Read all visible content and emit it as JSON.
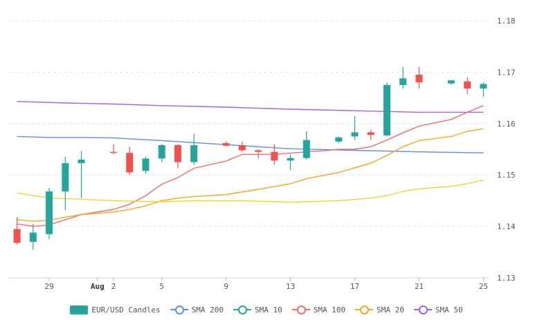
{
  "chart_data": {
    "type": "candlestick",
    "y_axis": {
      "position": "right",
      "range": [
        1.13,
        1.18
      ],
      "ticks": [
        "1.13",
        "1.14",
        "1.15",
        "1.16",
        "1.17",
        "1.18"
      ]
    },
    "x_axis": {
      "ticks": [
        {
          "day": 29,
          "label": "29"
        },
        {
          "day": 32,
          "label": "Aug",
          "bold": true
        },
        {
          "day": 33,
          "label": "2"
        },
        {
          "day": 36,
          "label": "5"
        },
        {
          "day": 40,
          "label": "9"
        },
        {
          "day": 44,
          "label": "13"
        },
        {
          "day": 48,
          "label": "17"
        },
        {
          "day": 52,
          "label": "21"
        },
        {
          "day": 56,
          "label": "25"
        }
      ]
    },
    "grid": true,
    "legend_placement": "bottom",
    "colors": {
      "up": "#26a69a",
      "down": "#ef5350",
      "sma200": "#5b8def",
      "sma10": "#ef6b6b",
      "sma100": "#f5a623",
      "sma20": "#f5d033",
      "sma50": "#a461e6"
    },
    "candles": [
      {
        "day": 27,
        "open": 1.1395,
        "high": 1.1418,
        "low": 1.1365,
        "close": 1.1368
      },
      {
        "day": 28,
        "open": 1.137,
        "high": 1.1405,
        "low": 1.1355,
        "close": 1.1388
      },
      {
        "day": 29,
        "open": 1.1385,
        "high": 1.1475,
        "low": 1.1375,
        "close": 1.1468
      },
      {
        "day": 30,
        "open": 1.1468,
        "high": 1.1535,
        "low": 1.1432,
        "close": 1.1523
      },
      {
        "day": 31,
        "open": 1.1523,
        "high": 1.1547,
        "low": 1.1455,
        "close": 1.153
      },
      {
        "day": 33,
        "open": 1.1545,
        "high": 1.156,
        "low": 1.154,
        "close": 1.1543
      },
      {
        "day": 34,
        "open": 1.1543,
        "high": 1.1555,
        "low": 1.15,
        "close": 1.1505
      },
      {
        "day": 35,
        "open": 1.1508,
        "high": 1.1535,
        "low": 1.1502,
        "close": 1.1532
      },
      {
        "day": 36,
        "open": 1.1532,
        "high": 1.156,
        "low": 1.1525,
        "close": 1.1558
      },
      {
        "day": 37,
        "open": 1.1558,
        "high": 1.156,
        "low": 1.1513,
        "close": 1.1525
      },
      {
        "day": 38,
        "open": 1.1525,
        "high": 1.158,
        "low": 1.152,
        "close": 1.1558
      },
      {
        "day": 40,
        "open": 1.1562,
        "high": 1.1565,
        "low": 1.1555,
        "close": 1.1557
      },
      {
        "day": 41,
        "open": 1.1558,
        "high": 1.1565,
        "low": 1.1545,
        "close": 1.1548
      },
      {
        "day": 42,
        "open": 1.1548,
        "high": 1.155,
        "low": 1.1532,
        "close": 1.1545
      },
      {
        "day": 43,
        "open": 1.1545,
        "high": 1.156,
        "low": 1.152,
        "close": 1.1528
      },
      {
        "day": 44,
        "open": 1.1528,
        "high": 1.154,
        "low": 1.151,
        "close": 1.1533
      },
      {
        "day": 45,
        "open": 1.1533,
        "high": 1.1585,
        "low": 1.153,
        "close": 1.1568
      },
      {
        "day": 47,
        "open": 1.1565,
        "high": 1.1575,
        "low": 1.1562,
        "close": 1.1573
      },
      {
        "day": 48,
        "open": 1.1575,
        "high": 1.1615,
        "low": 1.1568,
        "close": 1.1583
      },
      {
        "day": 49,
        "open": 1.1583,
        "high": 1.1588,
        "low": 1.1568,
        "close": 1.1578
      },
      {
        "day": 50,
        "open": 1.1577,
        "high": 1.168,
        "low": 1.1575,
        "close": 1.1675
      },
      {
        "day": 51,
        "open": 1.1675,
        "high": 1.171,
        "low": 1.1668,
        "close": 1.1688
      },
      {
        "day": 52,
        "open": 1.1695,
        "high": 1.171,
        "low": 1.1668,
        "close": 1.168
      },
      {
        "day": 54,
        "open": 1.1678,
        "high": 1.1685,
        "low": 1.1675,
        "close": 1.1684
      },
      {
        "day": 55,
        "open": 1.1682,
        "high": 1.169,
        "low": 1.1657,
        "close": 1.1668
      },
      {
        "day": 56,
        "open": 1.1668,
        "high": 1.168,
        "low": 1.1652,
        "close": 1.1677
      }
    ],
    "series": [
      {
        "name": "EUR/USD Candles",
        "legend_type": "box",
        "color": "#26a69a"
      },
      {
        "name": "SMA 200",
        "color": "#5b8def",
        "legend_type": "line",
        "points": [
          [
            27,
            1.1575
          ],
          [
            29,
            1.1573
          ],
          [
            31,
            1.1573
          ],
          [
            33,
            1.1572
          ],
          [
            36,
            1.1567
          ],
          [
            40,
            1.1559
          ],
          [
            44,
            1.1551
          ],
          [
            48,
            1.1548
          ],
          [
            52,
            1.1545
          ],
          [
            56,
            1.1543
          ]
        ]
      },
      {
        "name": "SMA 10",
        "color": "#26a69a",
        "legend_type": "line",
        "points": []
      },
      {
        "name": "SMA 100",
        "color": "#ef6b6b",
        "legend_type": "line",
        "points": [
          [
            27,
            1.1405
          ],
          [
            28,
            1.14
          ],
          [
            29,
            1.1403
          ],
          [
            30,
            1.1413
          ],
          [
            31,
            1.1423
          ],
          [
            33,
            1.1433
          ],
          [
            34,
            1.1443
          ],
          [
            35,
            1.146
          ],
          [
            36,
            1.1482
          ],
          [
            37,
            1.1495
          ],
          [
            38,
            1.1513
          ],
          [
            40,
            1.1527
          ],
          [
            41,
            1.154
          ],
          [
            43,
            1.154
          ],
          [
            45,
            1.1545
          ],
          [
            46,
            1.1547
          ],
          [
            47,
            1.155
          ],
          [
            48,
            1.155
          ],
          [
            49,
            1.1555
          ],
          [
            50,
            1.1568
          ],
          [
            51,
            1.1582
          ],
          [
            52,
            1.1595
          ],
          [
            54,
            1.1608
          ],
          [
            55,
            1.1622
          ],
          [
            56,
            1.1635
          ]
        ]
      },
      {
        "name": "SMA 20",
        "color": "#f5a623",
        "legend_type": "line",
        "points": [
          [
            27,
            1.1413
          ],
          [
            28,
            1.141
          ],
          [
            29,
            1.1412
          ],
          [
            30,
            1.1418
          ],
          [
            31,
            1.1423
          ],
          [
            33,
            1.1428
          ],
          [
            34,
            1.1433
          ],
          [
            35,
            1.144
          ],
          [
            36,
            1.145
          ],
          [
            37,
            1.1455
          ],
          [
            38,
            1.1458
          ],
          [
            40,
            1.1462
          ],
          [
            42,
            1.1472
          ],
          [
            44,
            1.1483
          ],
          [
            45,
            1.1493
          ],
          [
            47,
            1.1505
          ],
          [
            49,
            1.1523
          ],
          [
            50,
            1.1538
          ],
          [
            51,
            1.1555
          ],
          [
            52,
            1.1567
          ],
          [
            54,
            1.1575
          ],
          [
            55,
            1.1585
          ],
          [
            56,
            1.159
          ]
        ]
      },
      {
        "name": "SMA 50",
        "color": "#a461e6",
        "legend_type": "line",
        "points": [
          [
            27,
            1.1643
          ],
          [
            30,
            1.164
          ],
          [
            33,
            1.1638
          ],
          [
            36,
            1.1635
          ],
          [
            40,
            1.1632
          ],
          [
            44,
            1.1628
          ],
          [
            48,
            1.1625
          ],
          [
            52,
            1.1622
          ],
          [
            56,
            1.1622
          ]
        ]
      },
      {
        "name": "",
        "color": "#f5d033",
        "legend": false,
        "points": [
          [
            27,
            1.1465
          ],
          [
            29,
            1.1455
          ],
          [
            31,
            1.1453
          ],
          [
            33,
            1.145
          ],
          [
            36,
            1.1448
          ],
          [
            38,
            1.145
          ],
          [
            41,
            1.145
          ],
          [
            44,
            1.1447
          ],
          [
            47,
            1.145
          ],
          [
            49,
            1.1455
          ],
          [
            50,
            1.146
          ],
          [
            51,
            1.1468
          ],
          [
            52,
            1.1473
          ],
          [
            54,
            1.1478
          ],
          [
            55,
            1.1483
          ],
          [
            56,
            1.149
          ]
        ]
      }
    ]
  }
}
